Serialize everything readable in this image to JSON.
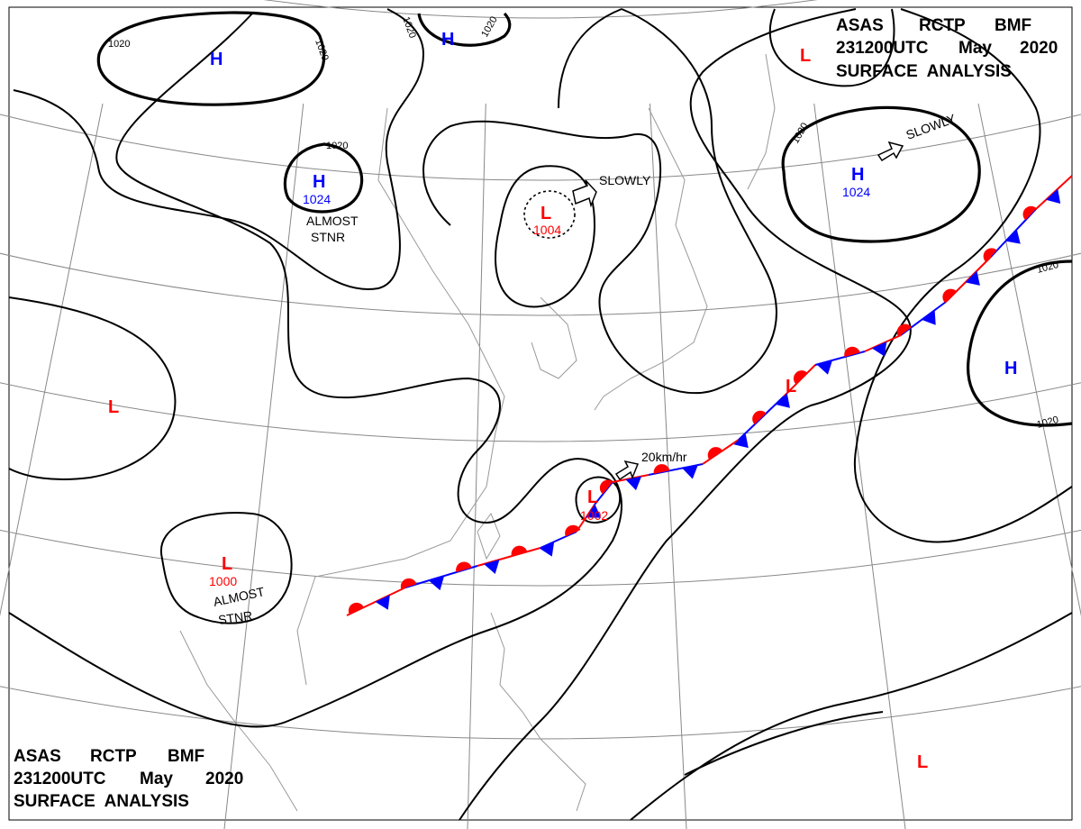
{
  "header_top": {
    "line1": [
      "ASAS",
      "RCTP",
      "BMF"
    ],
    "line2": [
      "231200UTC",
      "May",
      "2020"
    ],
    "line3": "SURFACE  ANALYSIS"
  },
  "header_bottom": {
    "line1": [
      "ASAS",
      "RCTP",
      "BMF"
    ],
    "line2": [
      "231200UTC",
      "May",
      "2020"
    ],
    "line3": "SURFACE  ANALYSIS"
  },
  "centers": {
    "h_northwest": {
      "symbol": "H"
    },
    "h_mongolia": {
      "symbol": "H",
      "pressure": "1024",
      "motion": [
        "ALMOST",
        "STNR"
      ]
    },
    "h_north": {
      "symbol": "H"
    },
    "h_pacific": {
      "symbol": "H",
      "pressure": "1024",
      "motion": "SLOWLY"
    },
    "h_east": {
      "symbol": "H"
    },
    "l_manchuria": {
      "symbol": "L",
      "pressure": "1004",
      "motion": "SLOWLY"
    },
    "l_tibet": {
      "symbol": "L"
    },
    "l_southchina": {
      "symbol": "L",
      "pressure": "1000",
      "motion": [
        "ALMOST",
        "STNR"
      ]
    },
    "l_taiwan": {
      "symbol": "L",
      "pressure": "1002",
      "motion": "20km/hr"
    },
    "l_front": {
      "symbol": "L"
    },
    "l_northeast": {
      "symbol": "L"
    },
    "l_southeast": {
      "symbol": "L"
    }
  },
  "isobar_labels": [
    "1020",
    "1020",
    "1020",
    "1020",
    "1020",
    "1020",
    "1020",
    "1020"
  ],
  "colors": {
    "high": "#0000ff",
    "low": "#ff0000",
    "warm_front": "#ff0000",
    "cold_front": "#0000ff",
    "isobar": "#000000",
    "grid": "#888888"
  }
}
